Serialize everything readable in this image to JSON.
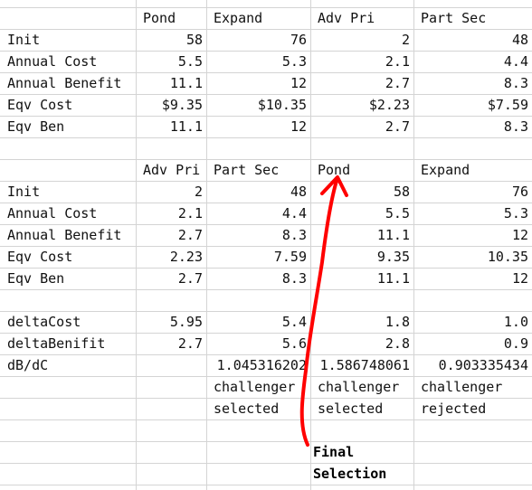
{
  "table1": {
    "headers": [
      "",
      "Pond",
      "Expand",
      "Adv Pri",
      "Part Sec"
    ],
    "rows": [
      [
        "Init",
        "58",
        "76",
        "2",
        "48"
      ],
      [
        "Annual Cost",
        "5.5",
        "5.3",
        "2.1",
        "4.4"
      ],
      [
        "Annual Benefit",
        "11.1",
        "12",
        "2.7",
        "8.3"
      ],
      [
        "Eqv Cost",
        "$9.35",
        "$10.35",
        "$2.23",
        "$7.59"
      ],
      [
        "Eqv Ben",
        "11.1",
        "12",
        "2.7",
        "8.3"
      ]
    ]
  },
  "table2": {
    "headers": [
      "",
      "Adv Pri",
      "Part Sec",
      "Pond",
      "Expand"
    ],
    "rows": [
      [
        "Init",
        "2",
        "48",
        "58",
        "76"
      ],
      [
        "Annual Cost",
        "2.1",
        "4.4",
        "5.5",
        "5.3"
      ],
      [
        "Annual Benefit",
        "2.7",
        "8.3",
        "11.1",
        "12"
      ],
      [
        "Eqv Cost",
        "2.23",
        "7.59",
        "9.35",
        "10.35"
      ],
      [
        "Eqv Ben",
        "2.7",
        "8.3",
        "11.1",
        "12"
      ]
    ],
    "delta_rows": [
      [
        "deltaCost",
        "5.95",
        "5.4",
        "1.8",
        "1.0"
      ],
      [
        "deltaBenifit",
        "2.7",
        "5.6",
        "2.8",
        "0.9"
      ],
      [
        "dB/dC",
        "",
        "1.045316202",
        "1.586748061",
        "0.903335434"
      ]
    ],
    "status_line1": [
      "",
      "",
      "challenger",
      "challenger",
      "challenger"
    ],
    "status_line2": [
      "",
      "",
      "selected",
      "selected",
      "rejected"
    ]
  },
  "annotation": {
    "line1": "Final",
    "line2": "Selection",
    "color": "#ff0000"
  }
}
